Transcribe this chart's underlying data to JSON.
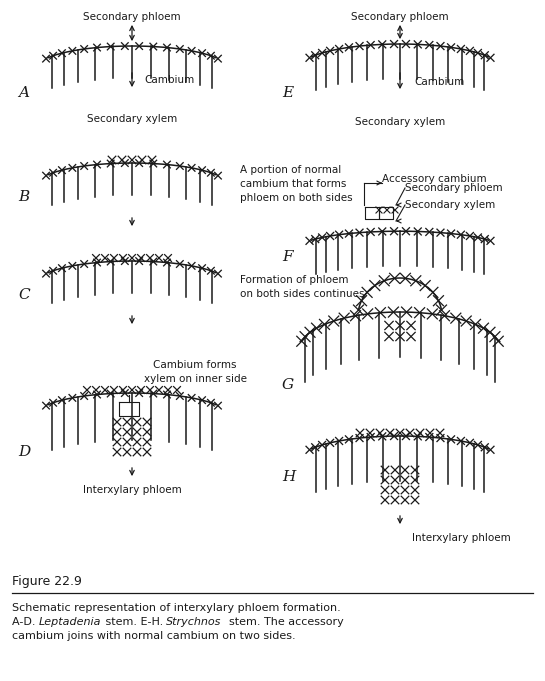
{
  "bg_color": "#ffffff",
  "line_color": "#1a1a1a",
  "fig_label": "Figure 22.9",
  "caption_parts": [
    [
      [
        "Schematic representation of interxylary phloem formation.",
        false
      ]
    ],
    [
      [
        "A-D. ",
        false
      ],
      [
        "Leptadenia",
        true
      ],
      [
        " stem. E-H. ",
        false
      ],
      [
        "Strychnos",
        true
      ],
      [
        "  stem. The accessory",
        false
      ]
    ],
    [
      [
        "cambium joins with normal cambium on two sides.",
        false
      ]
    ]
  ]
}
